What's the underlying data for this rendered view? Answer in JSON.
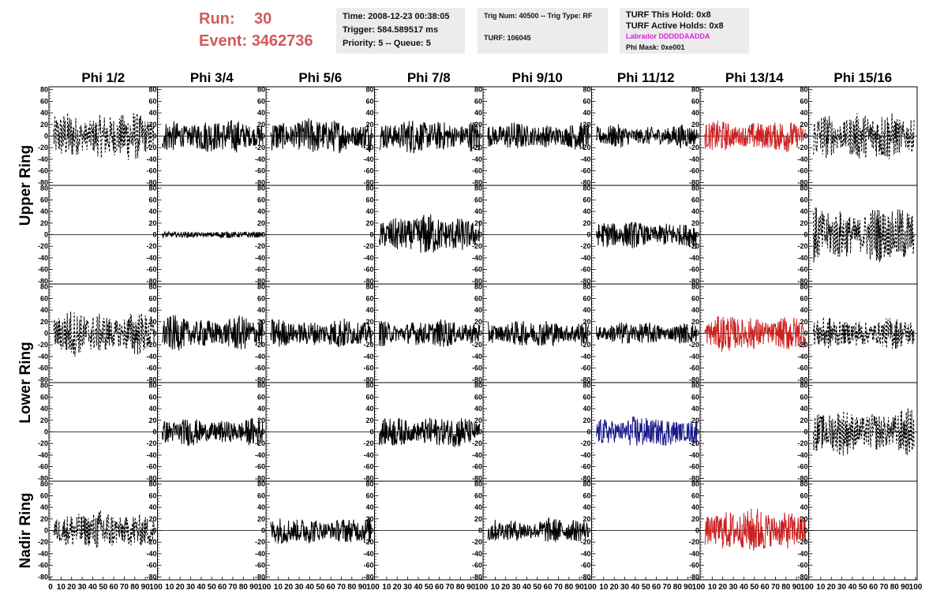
{
  "header": {
    "run_label": "Run:",
    "run_value": "30",
    "event_label": "Event:",
    "event_value": "3462736",
    "time": "Time: 2008-12-23 00:38:05",
    "trigger": "Trigger: 584.589517 ms",
    "priority": "Priority: 5 -- Queue: 5",
    "trig_num": "Trig Num: 40500 -- Trig Type: RF",
    "turf": "TURF: 106045",
    "turf_hold": "TURF This Hold: 0x8",
    "turf_active": "TURF Active Holds: 0x8",
    "labrador": "Labrador DDDDDAADDA",
    "phi_mask": "Phi Mask: 0xe001"
  },
  "colors": {
    "run": "#d05a5a",
    "labrador": "#e020e0",
    "red_trace": "#cc2020",
    "blue_trace": "#1a1a8c",
    "black_trace": "#000000"
  },
  "chart_data": {
    "type": "line",
    "columns": [
      "Phi 1/2",
      "Phi 3/4",
      "Phi 5/6",
      "Phi 7/8",
      "Phi 9/10",
      "Phi 11/12",
      "Phi 13/14",
      "Phi 15/16"
    ],
    "ring_labels": [
      "Upper Ring",
      "Lower Ring",
      "Nadir Ring"
    ],
    "ylim": [
      -85,
      85
    ],
    "yticks": [
      -80,
      -60,
      -40,
      -20,
      0,
      20,
      40,
      60,
      80
    ],
    "xlim": [
      0,
      100
    ],
    "xticks_first": [
      "0",
      "10",
      "20",
      "30",
      "40",
      "50",
      "60",
      "70",
      "80",
      "90",
      "100"
    ],
    "xticks_other": [
      "10",
      "20",
      "30",
      "40",
      "50",
      "60",
      "70",
      "80",
      "90",
      "100"
    ],
    "xtick_positions": [
      10,
      20,
      30,
      40,
      50,
      60,
      70,
      80,
      90,
      100
    ],
    "rows": [
      {
        "row": 1,
        "panels": [
          {
            "style": "dashed",
            "color": "black",
            "amp": 22
          },
          {
            "style": "solid",
            "color": "black",
            "amp": 15
          },
          {
            "style": "solid",
            "color": "black",
            "amp": 16
          },
          {
            "style": "solid",
            "color": "black",
            "amp": 15
          },
          {
            "style": "solid",
            "color": "black",
            "amp": 12
          },
          {
            "style": "solid",
            "color": "black",
            "amp": 10
          },
          {
            "style": "solid",
            "color": "red",
            "amp": 14
          },
          {
            "style": "dashed",
            "color": "black",
            "amp": 22
          }
        ]
      },
      {
        "row": 2,
        "panels": [
          {
            "style": "flat",
            "color": "black",
            "amp": 0
          },
          {
            "style": "solid",
            "color": "black",
            "amp": 3
          },
          {
            "style": "flat",
            "color": "black",
            "amp": 0
          },
          {
            "style": "solid",
            "color": "black",
            "amp": 18
          },
          {
            "style": "flat",
            "color": "black",
            "amp": 0
          },
          {
            "style": "solid",
            "color": "black",
            "amp": 12
          },
          {
            "style": "flat",
            "color": "black",
            "amp": 0
          },
          {
            "style": "dashed",
            "color": "black",
            "amp": 25
          }
        ]
      },
      {
        "row": 3,
        "panels": [
          {
            "style": "dashed",
            "color": "black",
            "amp": 20
          },
          {
            "style": "solid",
            "color": "black",
            "amp": 15
          },
          {
            "style": "solid",
            "color": "black",
            "amp": 13
          },
          {
            "style": "solid",
            "color": "black",
            "amp": 12
          },
          {
            "style": "solid",
            "color": "black",
            "amp": 12
          },
          {
            "style": "solid",
            "color": "black",
            "amp": 10
          },
          {
            "style": "solid",
            "color": "red",
            "amp": 16
          },
          {
            "style": "dashed",
            "color": "black",
            "amp": 14
          }
        ]
      },
      {
        "row": 4,
        "panels": [
          {
            "style": "flat",
            "color": "black",
            "amp": 0
          },
          {
            "style": "solid",
            "color": "black",
            "amp": 12
          },
          {
            "style": "flat",
            "color": "black",
            "amp": 0
          },
          {
            "style": "solid",
            "color": "black",
            "amp": 14
          },
          {
            "style": "flat",
            "color": "black",
            "amp": 0
          },
          {
            "style": "solid",
            "color": "blue",
            "amp": 14
          },
          {
            "style": "flat",
            "color": "black",
            "amp": 0
          },
          {
            "style": "dashed",
            "color": "black",
            "amp": 20
          }
        ]
      },
      {
        "row": 5,
        "panels": [
          {
            "style": "dashed",
            "color": "black",
            "amp": 18
          },
          {
            "style": "flat",
            "color": "black",
            "amp": 0
          },
          {
            "style": "solid",
            "color": "black",
            "amp": 12
          },
          {
            "style": "flat",
            "color": "black",
            "amp": 0
          },
          {
            "style": "solid",
            "color": "black",
            "amp": 11
          },
          {
            "style": "flat",
            "color": "black",
            "amp": 0
          },
          {
            "style": "solid",
            "color": "red",
            "amp": 20
          },
          {
            "style": "flat",
            "color": "black",
            "amp": 0
          }
        ]
      }
    ]
  }
}
